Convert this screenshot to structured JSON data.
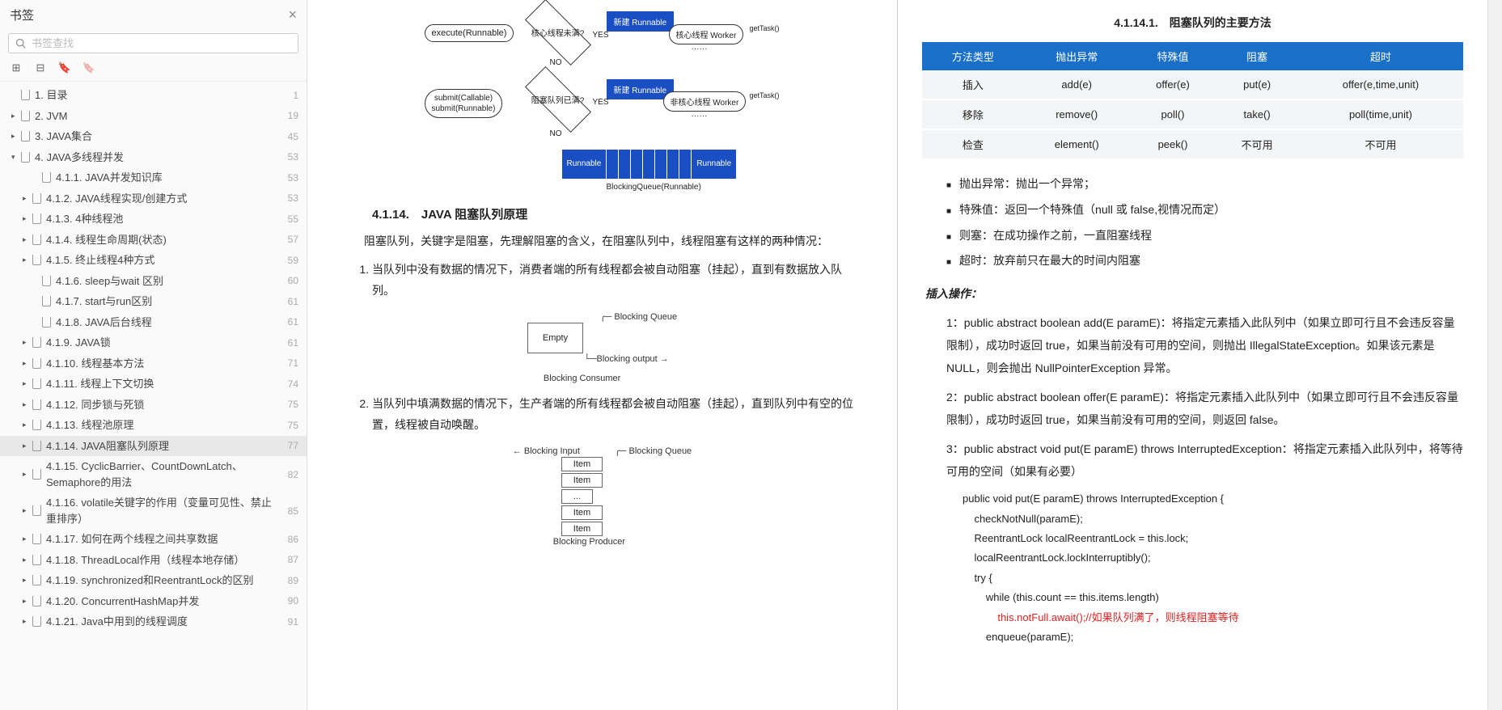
{
  "sidebar": {
    "title": "书签",
    "search_placeholder": "书签查找",
    "items": [
      {
        "label": "1. 目录",
        "page": "1",
        "indent": 14,
        "arrow": ""
      },
      {
        "label": "2. JVM",
        "page": "19",
        "indent": 14,
        "arrow": "▸"
      },
      {
        "label": "3. JAVA集合",
        "page": "45",
        "indent": 14,
        "arrow": "▸"
      },
      {
        "label": "4. JAVA多线程并发",
        "page": "53",
        "indent": 14,
        "arrow": "▾"
      },
      {
        "label": "4.1.1. JAVA并发知识库",
        "page": "53",
        "indent": 40,
        "arrow": ""
      },
      {
        "label": "4.1.2. JAVA线程实现/创建方式",
        "page": "53",
        "indent": 28,
        "arrow": "▸"
      },
      {
        "label": "4.1.3. 4种线程池",
        "page": "55",
        "indent": 28,
        "arrow": "▸"
      },
      {
        "label": "4.1.4. 线程生命周期(状态)",
        "page": "57",
        "indent": 28,
        "arrow": "▸"
      },
      {
        "label": "4.1.5. 终止线程4种方式",
        "page": "59",
        "indent": 28,
        "arrow": "▸"
      },
      {
        "label": "4.1.6. sleep与wait 区别",
        "page": "60",
        "indent": 40,
        "arrow": ""
      },
      {
        "label": "4.1.7. start与run区别",
        "page": "61",
        "indent": 40,
        "arrow": ""
      },
      {
        "label": "4.1.8. JAVA后台线程",
        "page": "61",
        "indent": 40,
        "arrow": ""
      },
      {
        "label": "4.1.9. JAVA锁",
        "page": "61",
        "indent": 28,
        "arrow": "▸"
      },
      {
        "label": "4.1.10. 线程基本方法",
        "page": "71",
        "indent": 28,
        "arrow": "▸"
      },
      {
        "label": "4.1.11. 线程上下文切换",
        "page": "74",
        "indent": 28,
        "arrow": "▸"
      },
      {
        "label": "4.1.12. 同步锁与死锁",
        "page": "75",
        "indent": 28,
        "arrow": "▸"
      },
      {
        "label": "4.1.13. 线程池原理",
        "page": "75",
        "indent": 28,
        "arrow": "▸"
      },
      {
        "label": "4.1.14. JAVA阻塞队列原理",
        "page": "77",
        "indent": 28,
        "arrow": "▸",
        "active": true
      },
      {
        "label": "4.1.15. CyclicBarrier、CountDownLatch、Semaphore的用法",
        "page": "82",
        "indent": 28,
        "arrow": "▸"
      },
      {
        "label": "4.1.16. volatile关键字的作用（变量可见性、禁止重排序）",
        "page": "85",
        "indent": 28,
        "arrow": "▸"
      },
      {
        "label": "4.1.17. 如何在两个线程之间共享数据",
        "page": "86",
        "indent": 28,
        "arrow": "▸"
      },
      {
        "label": "4.1.18. ThreadLocal作用（线程本地存储）",
        "page": "87",
        "indent": 28,
        "arrow": "▸"
      },
      {
        "label": "4.1.19. synchronized和ReentrantLock的区别",
        "page": "89",
        "indent": 28,
        "arrow": "▸"
      },
      {
        "label": "4.1.20. ConcurrentHashMap并发",
        "page": "90",
        "indent": 28,
        "arrow": "▸"
      },
      {
        "label": "4.1.21. Java中用到的线程调度",
        "page": "91",
        "indent": 28,
        "arrow": "▸"
      }
    ]
  },
  "page_left": {
    "flowchart": {
      "type": "flowchart",
      "node_color_blue": "#1a4fc4",
      "nodes": {
        "exec": "execute(Runnable)",
        "submit": "submit(Callable)\nsubmit(Runnable)",
        "core_full": "核心线程未满?",
        "new_run1": "新建 Runnable",
        "core_worker": "核心线程 Worker",
        "queue_full": "阻塞队列已满?",
        "new_run2": "新建 Runnable",
        "noncore_worker": "非核心线程 Worker",
        "bq_caption": "BlockingQueue(Runnable)",
        "get_task": "getTask()",
        "yes": "YES",
        "no": "NO",
        "run_lbl": "Runnable",
        "dots": "······"
      }
    },
    "section_title": "4.1.14.　JAVA 阻塞队列原理",
    "intro": "阻塞队列，关键字是阻塞，先理解阻塞的含义，在阻塞队列中，线程阻塞有这样的两种情况：",
    "item1": "当队列中没有数据的情况下，消费者端的所有线程都会被自动阻塞（挂起），直到有数据放入队列。",
    "diag1": {
      "empty": "Empty",
      "bq": "Blocking Queue",
      "out": "Blocking output",
      "consumer": "Blocking Consumer"
    },
    "item2": "当队列中填满数据的情况下，生产者端的所有线程都会被自动阻塞（挂起），直到队列中有空的位置，线程被自动唤醒。",
    "diag2": {
      "in": "Blocking Input",
      "bq": "Blocking Queue",
      "item": "Item",
      "dots": "...",
      "producer": "Blocking Producer"
    }
  },
  "page_right": {
    "subsection_title": "4.1.14.1.　阻塞队列的主要方法",
    "table": {
      "headers": [
        "方法类型",
        "抛出异常",
        "特殊值",
        "阻塞",
        "超时"
      ],
      "rows": [
        [
          "插入",
          "add(e)",
          "offer(e)",
          "put(e)",
          "offer(e,time,unit)"
        ],
        [
          "移除",
          "remove()",
          "poll()",
          "take()",
          "poll(time,unit)"
        ],
        [
          "检查",
          "element()",
          "peek()",
          "不可用",
          "不可用"
        ]
      ],
      "header_bg": "#1a6fc9",
      "row_bg": "#f3f5f7"
    },
    "bullets": [
      "抛出异常：抛出一个异常；",
      "特殊值：返回一个特殊值（null 或 false,视情况而定）",
      "则塞：在成功操作之前，一直阻塞线程",
      "超时：放弃前只在最大的时间内阻塞"
    ],
    "insert_heading": "插入操作：",
    "desc1": "1：public abstract boolean add(E paramE)：将指定元素插入此队列中（如果立即可行且不会违反容量限制），成功时返回 true，如果当前没有可用的空间，则抛出 IllegalStateException。如果该元素是 NULL，则会抛出 NullPointerException 异常。",
    "desc2": "2：public abstract boolean offer(E paramE)：将指定元素插入此队列中（如果立即可行且不会违反容量限制），成功时返回 true，如果当前没有可用的空间，则返回 false。",
    "desc3": "3：public abstract void put(E paramE) throws InterruptedException：将指定元素插入此队列中，将等待可用的空间（如果有必要）",
    "code": {
      "l1": "public void put(E paramE) throws InterruptedException {",
      "l2": "    checkNotNull(paramE);",
      "l3": "    ReentrantLock localReentrantLock = this.lock;",
      "l4": "    localReentrantLock.lockInterruptibly();",
      "l5": "    try {",
      "l6": "        while (this.count == this.items.length)",
      "l7": "            this.notFull.await();//如果队列满了，则线程阻塞等待",
      "l8": "        enqueue(paramE);"
    }
  }
}
